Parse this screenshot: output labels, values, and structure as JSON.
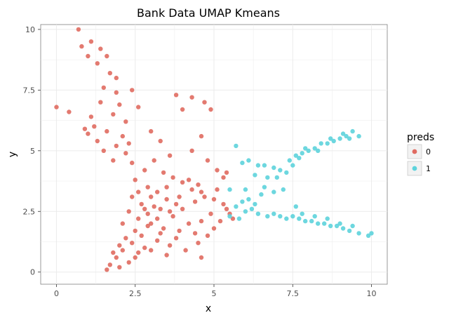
{
  "chart_data": {
    "type": "scatter",
    "title": "Bank Data UMAP Kmeans",
    "xlabel": "x",
    "ylabel": "y",
    "xlim": [
      -0.5,
      10.5
    ],
    "ylim": [
      -0.5,
      10.2
    ],
    "x_ticks": [
      0,
      2.5,
      5,
      7.5,
      10
    ],
    "x_tick_labels": [
      "0",
      "2.5",
      "5",
      "7.5",
      "10"
    ],
    "y_ticks": [
      0,
      2.5,
      5,
      7.5,
      10
    ],
    "y_tick_labels": [
      "0",
      "2.5",
      "5",
      "7.5",
      "10"
    ],
    "grid": true,
    "legend_position": "right",
    "legend_title": "preds",
    "series": [
      {
        "name": "0",
        "color": "#E06B61",
        "points": [
          [
            1.6,
            8.9
          ],
          [
            1.7,
            8.2
          ],
          [
            1.5,
            7.6
          ],
          [
            1.9,
            7.4
          ],
          [
            1.4,
            7.0
          ],
          [
            2.0,
            6.9
          ],
          [
            1.8,
            6.5
          ],
          [
            1.2,
            6.0
          ],
          [
            1.6,
            5.8
          ],
          [
            2.1,
            5.6
          ],
          [
            1.3,
            5.4
          ],
          [
            1.9,
            5.2
          ],
          [
            1.5,
            5.0
          ],
          [
            2.2,
            4.9
          ],
          [
            1.0,
            5.7
          ],
          [
            1.8,
            4.6
          ],
          [
            2.4,
            4.5
          ],
          [
            1.1,
            6.4
          ],
          [
            0.9,
            5.9
          ],
          [
            2.3,
            5.3
          ],
          [
            0.0,
            6.8
          ],
          [
            0.4,
            6.6
          ],
          [
            0.7,
            10.0
          ],
          [
            1.1,
            9.5
          ],
          [
            0.8,
            9.3
          ],
          [
            1.4,
            9.2
          ],
          [
            1.0,
            8.9
          ],
          [
            1.3,
            8.6
          ],
          [
            1.9,
            8.0
          ],
          [
            2.4,
            7.5
          ],
          [
            2.6,
            6.8
          ],
          [
            2.2,
            6.2
          ],
          [
            3.0,
            5.8
          ],
          [
            3.3,
            5.4
          ],
          [
            3.8,
            7.3
          ],
          [
            4.0,
            6.7
          ],
          [
            4.3,
            7.2
          ],
          [
            4.7,
            7.0
          ],
          [
            4.9,
            6.7
          ],
          [
            4.6,
            5.6
          ],
          [
            4.3,
            5.0
          ],
          [
            3.6,
            4.8
          ],
          [
            3.1,
            4.6
          ],
          [
            2.8,
            4.2
          ],
          [
            2.5,
            3.8
          ],
          [
            2.9,
            3.5
          ],
          [
            3.2,
            3.3
          ],
          [
            3.5,
            3.0
          ],
          [
            3.8,
            2.8
          ],
          [
            3.3,
            2.6
          ],
          [
            2.9,
            2.4
          ],
          [
            2.6,
            2.2
          ],
          [
            3.0,
            2.0
          ],
          [
            3.4,
            1.8
          ],
          [
            3.9,
            1.7
          ],
          [
            2.7,
            1.5
          ],
          [
            2.4,
            1.2
          ],
          [
            2.1,
            0.9
          ],
          [
            1.9,
            0.6
          ],
          [
            1.7,
            0.3
          ],
          [
            1.6,
            0.1
          ],
          [
            2.0,
            0.2
          ],
          [
            2.5,
            0.6
          ],
          [
            2.8,
            1.0
          ],
          [
            3.2,
            1.3
          ],
          [
            3.6,
            1.1
          ],
          [
            4.1,
            0.9
          ],
          [
            4.5,
            1.2
          ],
          [
            4.8,
            1.5
          ],
          [
            4.2,
            2.0
          ],
          [
            3.7,
            2.3
          ],
          [
            4.0,
            2.6
          ],
          [
            4.4,
            2.9
          ],
          [
            4.7,
            3.1
          ],
          [
            5.0,
            3.0
          ],
          [
            5.3,
            2.8
          ],
          [
            5.5,
            2.4
          ],
          [
            5.2,
            2.1
          ],
          [
            4.9,
            2.4
          ],
          [
            4.6,
            2.1
          ],
          [
            4.3,
            3.4
          ],
          [
            4.0,
            3.7
          ],
          [
            3.7,
            3.9
          ],
          [
            3.4,
            4.1
          ],
          [
            2.7,
            2.8
          ],
          [
            2.3,
            2.5
          ],
          [
            2.1,
            2.0
          ],
          [
            2.5,
            1.7
          ],
          [
            2.9,
            1.9
          ],
          [
            3.1,
            2.7
          ],
          [
            3.5,
            3.5
          ],
          [
            4.2,
            3.8
          ],
          [
            4.6,
            3.3
          ],
          [
            5.1,
            3.4
          ],
          [
            5.4,
            2.6
          ],
          [
            5.6,
            2.2
          ],
          [
            5.0,
            1.8
          ],
          [
            4.4,
            1.6
          ],
          [
            3.8,
            1.4
          ],
          [
            3.3,
            1.6
          ],
          [
            2.2,
            1.4
          ],
          [
            2.0,
            1.1
          ],
          [
            1.8,
            0.8
          ],
          [
            2.3,
            0.4
          ],
          [
            2.6,
            0.8
          ],
          [
            3.0,
            0.9
          ],
          [
            3.5,
            0.7
          ],
          [
            4.6,
            0.6
          ],
          [
            5.1,
            4.2
          ],
          [
            4.8,
            4.6
          ],
          [
            5.3,
            3.9
          ],
          [
            5.4,
            4.1
          ],
          [
            4.5,
            3.6
          ],
          [
            3.9,
            3.1
          ],
          [
            3.6,
            2.5
          ],
          [
            3.2,
            2.2
          ],
          [
            2.8,
            2.6
          ],
          [
            2.4,
            3.1
          ],
          [
            2.6,
            3.3
          ],
          [
            3.0,
            3.1
          ]
        ]
      },
      {
        "name": "1",
        "color": "#5DD3DC",
        "points": [
          [
            5.7,
            5.2
          ],
          [
            5.9,
            4.5
          ],
          [
            6.1,
            4.6
          ],
          [
            6.4,
            4.4
          ],
          [
            6.6,
            4.4
          ],
          [
            6.9,
            4.3
          ],
          [
            7.1,
            4.2
          ],
          [
            7.4,
            4.6
          ],
          [
            7.6,
            4.8
          ],
          [
            7.8,
            4.9
          ],
          [
            8.0,
            5.0
          ],
          [
            8.2,
            5.1
          ],
          [
            8.4,
            5.3
          ],
          [
            8.6,
            5.3
          ],
          [
            8.8,
            5.4
          ],
          [
            9.0,
            5.5
          ],
          [
            9.2,
            5.6
          ],
          [
            9.4,
            5.8
          ],
          [
            9.6,
            5.6
          ],
          [
            7.7,
            4.7
          ],
          [
            7.9,
            5.1
          ],
          [
            8.3,
            5.0
          ],
          [
            8.7,
            5.5
          ],
          [
            9.1,
            5.7
          ],
          [
            9.3,
            5.5
          ],
          [
            6.3,
            4.0
          ],
          [
            6.7,
            3.9
          ],
          [
            7.0,
            3.9
          ],
          [
            7.3,
            4.1
          ],
          [
            7.5,
            4.4
          ],
          [
            5.5,
            2.3
          ],
          [
            5.8,
            2.2
          ],
          [
            6.0,
            2.5
          ],
          [
            6.2,
            2.6
          ],
          [
            6.4,
            2.4
          ],
          [
            6.7,
            2.3
          ],
          [
            6.9,
            2.4
          ],
          [
            7.1,
            2.3
          ],
          [
            7.3,
            2.2
          ],
          [
            7.5,
            2.3
          ],
          [
            7.7,
            2.2
          ],
          [
            7.9,
            2.1
          ],
          [
            8.1,
            2.1
          ],
          [
            8.3,
            2.0
          ],
          [
            8.5,
            2.0
          ],
          [
            8.7,
            1.9
          ],
          [
            8.9,
            1.9
          ],
          [
            9.1,
            1.8
          ],
          [
            9.3,
            1.7
          ],
          [
            9.6,
            1.6
          ],
          [
            9.9,
            1.5
          ],
          [
            10.0,
            1.6
          ],
          [
            7.8,
            2.4
          ],
          [
            8.2,
            2.3
          ],
          [
            8.6,
            2.2
          ],
          [
            9.0,
            2.0
          ],
          [
            9.4,
            1.9
          ],
          [
            6.1,
            3.0
          ],
          [
            6.5,
            3.2
          ],
          [
            6.0,
            3.4
          ],
          [
            5.9,
            2.9
          ],
          [
            6.3,
            2.8
          ],
          [
            5.5,
            3.4
          ],
          [
            6.6,
            3.5
          ],
          [
            6.9,
            3.3
          ],
          [
            7.2,
            3.4
          ],
          [
            7.6,
            2.7
          ],
          [
            5.7,
            2.7
          ]
        ]
      }
    ]
  }
}
